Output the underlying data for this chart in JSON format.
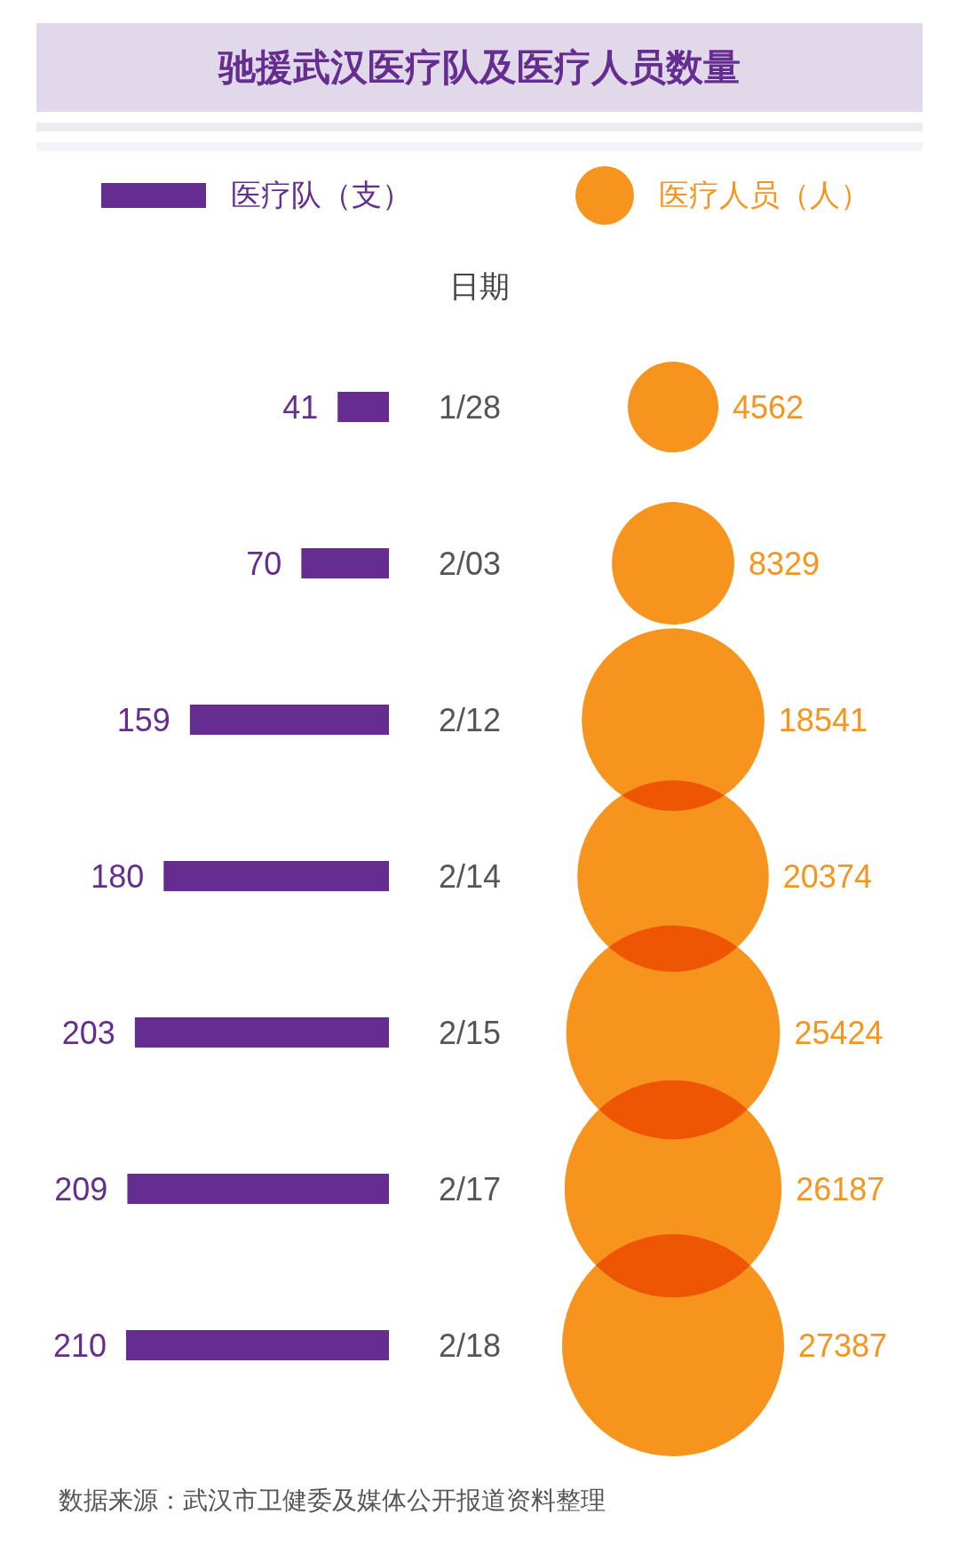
{
  "chart_data": [
    {
      "type": "bar",
      "orientation": "horizontal",
      "title": "驰援武汉医疗队及医疗人员数量",
      "ylabel": "日期",
      "categories": [
        "1/28",
        "2/03",
        "2/12",
        "2/14",
        "2/15",
        "2/17",
        "2/18"
      ],
      "series": [
        {
          "name": "医疗队（支）",
          "color": "#662d91",
          "values": [
            41,
            70,
            159,
            180,
            203,
            209,
            210
          ]
        }
      ],
      "data_labels": true,
      "legend": "top",
      "annotations": [
        "数据来源：武汉市卫健委及媒体公开报道资料整理"
      ]
    },
    {
      "type": "other",
      "series": [
        {
          "name": "医疗人员（人）",
          "color": "#f7941d",
          "values": [
            4562,
            8329,
            18541,
            20374,
            25424,
            26187,
            27387
          ]
        }
      ],
      "data_labels": true,
      "legend": "top"
    }
  ]
}
